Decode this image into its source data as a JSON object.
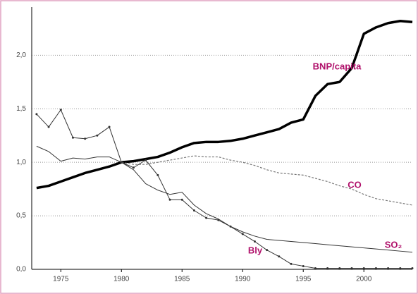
{
  "chart_data": {
    "type": "line",
    "x": [
      1973,
      1974,
      1975,
      1976,
      1977,
      1978,
      1979,
      1980,
      1981,
      1982,
      1983,
      1984,
      1985,
      1986,
      1987,
      1988,
      1989,
      1990,
      1991,
      1992,
      1993,
      1994,
      1995,
      1996,
      1997,
      1998,
      1999,
      2000,
      2001,
      2002,
      2003,
      2004
    ],
    "series": [
      {
        "name": "BNP/capita",
        "color": "#000000",
        "values": [
          0.76,
          0.78,
          0.82,
          0.86,
          0.9,
          0.93,
          0.96,
          1.0,
          1.01,
          1.03,
          1.05,
          1.09,
          1.14,
          1.18,
          1.19,
          1.19,
          1.2,
          1.22,
          1.25,
          1.28,
          1.31,
          1.37,
          1.4,
          1.62,
          1.73,
          1.75,
          1.88,
          2.2,
          2.26,
          2.3,
          2.32,
          2.31
        ]
      },
      {
        "name": "CO",
        "color": "#777777",
        "values": [
          null,
          null,
          null,
          null,
          null,
          null,
          null,
          1.0,
          0.98,
          0.98,
          1.0,
          1.02,
          1.04,
          1.06,
          1.05,
          1.05,
          1.02,
          1.0,
          0.97,
          0.93,
          0.9,
          0.89,
          0.88,
          0.85,
          0.82,
          0.78,
          0.75,
          0.7,
          0.66,
          0.64,
          0.62,
          0.6
        ]
      },
      {
        "name": "SO₂",
        "color": "#333333",
        "values": [
          1.15,
          1.1,
          1.01,
          1.04,
          1.03,
          1.05,
          1.05,
          1.0,
          0.93,
          0.8,
          0.74,
          0.7,
          0.72,
          0.6,
          0.52,
          0.47,
          0.4,
          0.35,
          0.31,
          0.28,
          0.27,
          0.26,
          0.25,
          0.24,
          0.23,
          0.22,
          0.21,
          0.2,
          0.19,
          0.18,
          0.17,
          0.16
        ]
      },
      {
        "name": "Bly",
        "color": "#333333",
        "values": [
          1.45,
          1.33,
          1.49,
          1.23,
          1.22,
          1.25,
          1.33,
          1.0,
          0.95,
          1.02,
          0.88,
          0.65,
          0.65,
          0.55,
          0.48,
          0.46,
          0.4,
          0.33,
          0.26,
          0.18,
          0.12,
          0.05,
          0.03,
          0.01,
          0.01,
          0.01,
          0.01,
          0.01,
          0.01,
          0.01,
          0.01,
          0.01
        ]
      }
    ],
    "xlim": [
      1972.6,
      2004
    ],
    "xticks": [
      1975,
      1980,
      1985,
      1990,
      1995,
      2000
    ],
    "ylim": [
      0,
      2.45
    ],
    "yticks": [
      {
        "value": 0,
        "label": "0,0"
      },
      {
        "value": 0.5,
        "label": "0,5"
      },
      {
        "value": 1,
        "label": "1,0"
      },
      {
        "value": 1.5,
        "label": "1,5"
      },
      {
        "value": 2,
        "label": "2,0"
      }
    ],
    "grid": true
  }
}
